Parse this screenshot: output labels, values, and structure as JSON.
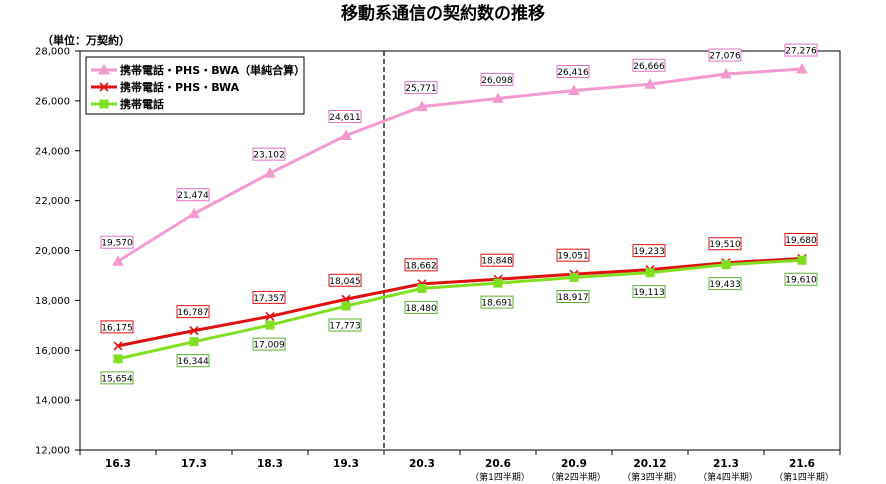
{
  "chart_data": {
    "type": "line",
    "title": "移動系通信の契約数の推移",
    "unit_label": "（単位：万契約）",
    "ylim": [
      12000,
      28000
    ],
    "ytick_step": 2000,
    "yticks": [
      "12,000",
      "14,000",
      "16,000",
      "18,000",
      "20,000",
      "22,000",
      "24,000",
      "26,000",
      "28,000"
    ],
    "categories": [
      "16.3",
      "17.3",
      "18.3",
      "19.3",
      "20.3",
      "20.6",
      "20.9",
      "20.12",
      "21.3",
      "21.6"
    ],
    "category_notes": [
      "",
      "",
      "",
      "",
      "",
      "（第1四半期）",
      "（第2四半期）",
      "（第3四半期）",
      "（第4四半期）",
      "（第1四半期）"
    ],
    "divider_after_index": 3,
    "grid": false,
    "legend_position": "top-left",
    "series": [
      {
        "name": "携帯電話・PHS・BWA（単純合算）",
        "color": "#f39ad0",
        "marker": "triangle",
        "label_box_color": "#e070c0",
        "label_position": "above",
        "values": [
          19570,
          21474,
          23102,
          24611,
          25771,
          26098,
          26416,
          26666,
          27076,
          27276
        ],
        "labels": [
          "19,570",
          "21,474",
          "23,102",
          "24,611",
          "25,771",
          "26,098",
          "26,416",
          "26,666",
          "27,076",
          "27,276"
        ]
      },
      {
        "name": "携帯電話・PHS・BWA",
        "color": "#e01010",
        "marker": "x",
        "label_box_color": "#e01010",
        "label_position": "above",
        "values": [
          16175,
          16787,
          17357,
          18045,
          18662,
          18848,
          19051,
          19233,
          19510,
          19680
        ],
        "labels": [
          "16,175",
          "16,787",
          "17,357",
          "18,045",
          "18,662",
          "18,848",
          "19,051",
          "19,233",
          "19,510",
          "19,680"
        ]
      },
      {
        "name": "携帯電話",
        "color": "#80e020",
        "marker": "square",
        "label_box_color": "#60b030",
        "label_position": "below",
        "values": [
          15654,
          16344,
          17009,
          17773,
          18480,
          18691,
          18917,
          19113,
          19433,
          19610
        ],
        "labels": [
          "15,654",
          "16,344",
          "17,009",
          "17,773",
          "18,480",
          "18,691",
          "18,917",
          "19,113",
          "19,433",
          "19,610"
        ]
      }
    ]
  }
}
